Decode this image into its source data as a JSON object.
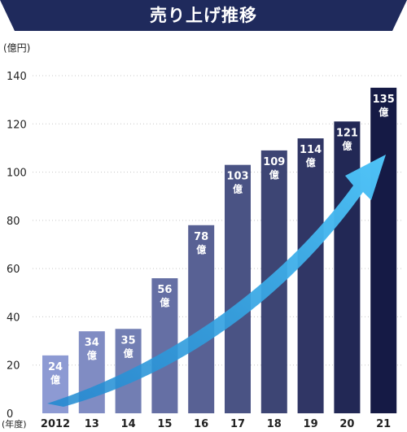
{
  "banner": {
    "title": "売り上げ推移"
  },
  "colors": {
    "banner": "#1f2a5c",
    "arrow_start": "#1e88d0",
    "arrow_end": "#4fc3f7",
    "bar_start": "#8d9ad3",
    "bar_end": "#151a45",
    "label_text": "#ffffff",
    "axis_text": "#222222",
    "grid": "#c8c8c8"
  },
  "chart_data": {
    "type": "bar",
    "title": "売り上げ推移",
    "ylabel": "(億円)",
    "xlabel": "(年度)",
    "ylim": [
      0,
      140
    ],
    "yticks": [
      0,
      20,
      40,
      60,
      80,
      100,
      120,
      140
    ],
    "grid": true,
    "categories": [
      "2012",
      "13",
      "14",
      "15",
      "16",
      "17",
      "18",
      "19",
      "20",
      "21"
    ],
    "values": [
      24,
      34,
      35,
      56,
      78,
      103,
      109,
      114,
      121,
      135
    ],
    "data_labels": [
      "24",
      "34",
      "35",
      "56",
      "78",
      "103",
      "109",
      "114",
      "121",
      "135"
    ],
    "data_label_unit": "億",
    "annotation": "upward-growth-arrow"
  }
}
